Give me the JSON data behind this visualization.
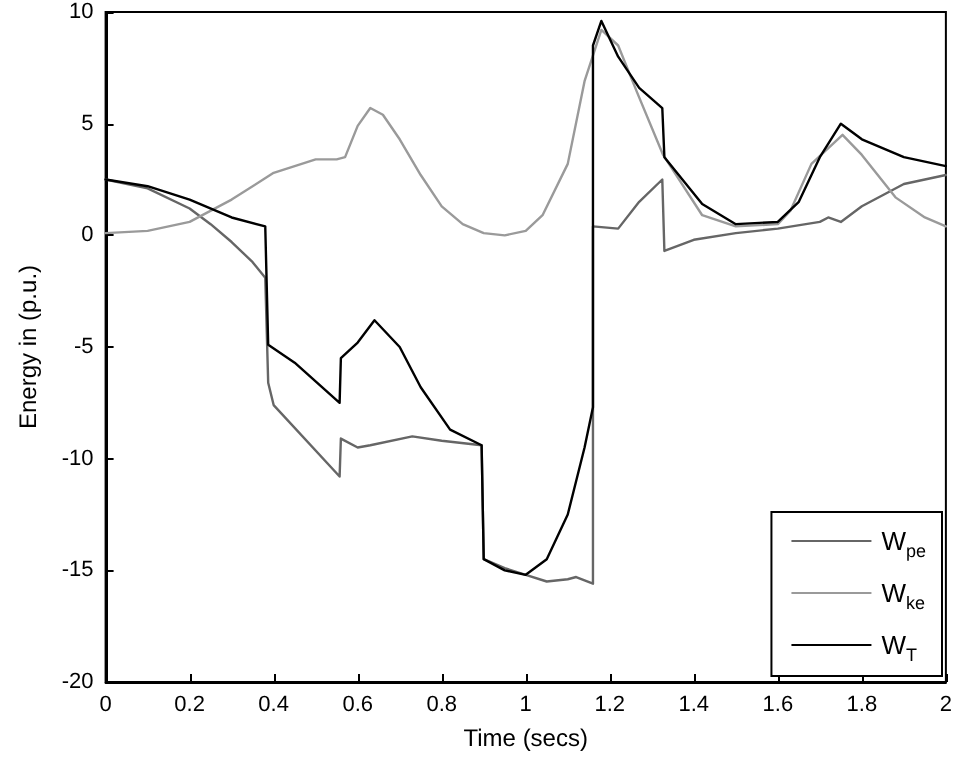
{
  "chart_data": {
    "type": "line",
    "xlabel": "Time (secs)",
    "ylabel": "Energy in (p.u.)",
    "xlim": [
      0,
      2
    ],
    "xticks": [
      0,
      0.2,
      0.4,
      0.6,
      0.8,
      1,
      1.2,
      1.4,
      1.6,
      1.8,
      2
    ],
    "ylim": [
      -20,
      10
    ],
    "yticks": [
      -20,
      -15,
      -10,
      -5,
      0,
      5,
      10
    ],
    "grid": false,
    "legend": "bottom right",
    "marker": "none",
    "line_style": "solid",
    "series": [
      {
        "name": "W$_{pe}$",
        "color": "#666666",
        "x": [
          0,
          0.1,
          0.2,
          0.25,
          0.3,
          0.35,
          0.38,
          0.387,
          0.4,
          0.557,
          0.56,
          0.6,
          0.63,
          0.73,
          0.8,
          0.895,
          0.9,
          0.95,
          1.0,
          1.05,
          1.1,
          1.12,
          1.16,
          1.16,
          1.22,
          1.27,
          1.325,
          1.33,
          1.4,
          1.5,
          1.6,
          1.7,
          1.72,
          1.75,
          1.8,
          1.9,
          2.0
        ],
        "values": [
          2.5,
          2.1,
          1.2,
          0.5,
          -0.3,
          -1.2,
          -1.9,
          -6.6,
          -7.6,
          -10.8,
          -9.1,
          -9.5,
          -9.4,
          -9.0,
          -9.2,
          -9.4,
          -14.5,
          -14.9,
          -15.2,
          -15.5,
          -15.4,
          -15.3,
          -15.6,
          0.4,
          0.3,
          1.5,
          2.5,
          -0.7,
          -0.2,
          0.1,
          0.3,
          0.6,
          0.8,
          0.6,
          1.3,
          2.3,
          2.7
        ]
      },
      {
        "name": "W$_{ke}$",
        "color": "#9a9a9a",
        "x": [
          0,
          0.1,
          0.2,
          0.3,
          0.4,
          0.5,
          0.55,
          0.57,
          0.6,
          0.63,
          0.66,
          0.7,
          0.75,
          0.8,
          0.85,
          0.9,
          0.95,
          1.0,
          1.04,
          1.1,
          1.14,
          1.18,
          1.22,
          1.265,
          1.327,
          1.42,
          1.5,
          1.6,
          1.63,
          1.68,
          1.754,
          1.8,
          1.88,
          1.95,
          2.0
        ],
        "values": [
          0.1,
          0.2,
          0.6,
          1.6,
          2.8,
          3.4,
          3.4,
          3.5,
          4.9,
          5.7,
          5.4,
          4.3,
          2.7,
          1.3,
          0.5,
          0.1,
          0.0,
          0.2,
          0.9,
          3.2,
          6.9,
          9.2,
          8.5,
          6.4,
          3.6,
          0.9,
          0.4,
          0.5,
          1.1,
          3.2,
          4.5,
          3.6,
          1.7,
          0.8,
          0.4
        ]
      },
      {
        "name": "W$_{T}$",
        "color": "#000000",
        "x": [
          0,
          0.1,
          0.2,
          0.3,
          0.38,
          0.387,
          0.45,
          0.557,
          0.56,
          0.6,
          0.64,
          0.7,
          0.75,
          0.82,
          0.895,
          0.9,
          0.95,
          1.0,
          1.05,
          1.1,
          1.14,
          1.16,
          1.16,
          1.18,
          1.22,
          1.27,
          1.325,
          1.33,
          1.42,
          1.5,
          1.6,
          1.65,
          1.7,
          1.75,
          1.8,
          1.9,
          2.0
        ],
        "values": [
          2.5,
          2.2,
          1.6,
          0.8,
          0.4,
          -4.9,
          -5.7,
          -7.5,
          -5.5,
          -4.8,
          -3.8,
          -5.0,
          -6.8,
          -8.7,
          -9.4,
          -14.5,
          -15.0,
          -15.2,
          -14.5,
          -12.5,
          -9.5,
          -7.7,
          8.5,
          9.6,
          8.0,
          6.6,
          5.7,
          3.5,
          1.4,
          0.5,
          0.6,
          1.5,
          3.5,
          5.0,
          4.3,
          3.5,
          3.1
        ]
      }
    ]
  }
}
